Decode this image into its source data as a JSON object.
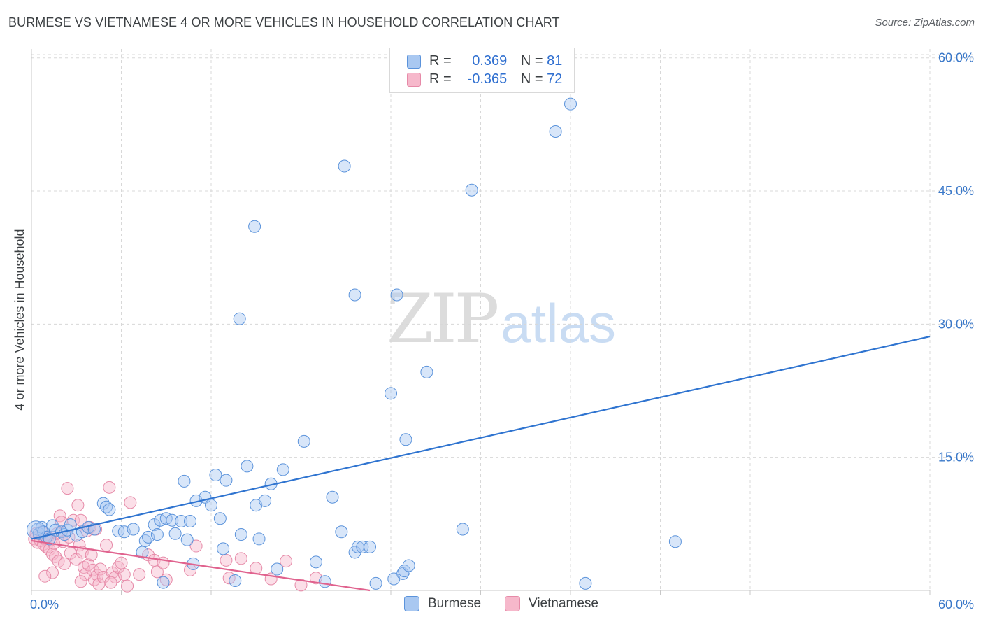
{
  "title": "BURMESE VS VIETNAMESE 4 OR MORE VEHICLES IN HOUSEHOLD CORRELATION CHART",
  "source": "Source: ZipAtlas.com",
  "watermark": {
    "zip": "ZIP",
    "atlas": "atlas"
  },
  "legend": {
    "rows": [
      {
        "r_label": "R =",
        "r_value": "0.369",
        "n_label": "N =",
        "n_value": "81"
      },
      {
        "r_label": "R =",
        "r_value": "-0.365",
        "n_label": "N =",
        "n_value": "72"
      }
    ]
  },
  "bottom_legend": {
    "series1": "Burmese",
    "series2": "Vietnamese"
  },
  "colors": {
    "blue_fill": "#a9c8f1",
    "blue_stroke": "#5b93db",
    "blue_line": "#2f74d0",
    "pink_fill": "#f6b8cb",
    "pink_stroke": "#e68aa8",
    "pink_line": "#e0628e",
    "grid": "#d8d8d8",
    "tick_text": "#3a78c9"
  },
  "chart_data": {
    "type": "scatter",
    "title": "BURMESE VS VIETNAMESE 4 OR MORE VEHICLES IN HOUSEHOLD CORRELATION CHART",
    "xlabel": "",
    "ylabel": "4 or more Vehicles in Household",
    "xlim": [
      0,
      60
    ],
    "ylim": [
      0,
      61
    ],
    "x_tick_labels": [
      "0.0%",
      "60.0%"
    ],
    "y_ticks": [
      15,
      30,
      45,
      60
    ],
    "y_tick_labels": [
      "15.0%",
      "30.0%",
      "45.0%",
      "60.0%"
    ],
    "series": [
      {
        "name": "Burmese",
        "r": 0.369,
        "n": 81,
        "trend": {
          "x": [
            0,
            60
          ],
          "y": [
            5.8,
            28.6
          ]
        },
        "points": [
          [
            0.4,
            6.9
          ],
          [
            0.5,
            6.4
          ],
          [
            0.7,
            7.1
          ],
          [
            0.8,
            6.6
          ],
          [
            1.0,
            6.0
          ],
          [
            1.2,
            5.8
          ],
          [
            1.4,
            7.3
          ],
          [
            1.6,
            6.8
          ],
          [
            2.0,
            6.6
          ],
          [
            2.2,
            6.3
          ],
          [
            2.4,
            6.8
          ],
          [
            2.6,
            7.4
          ],
          [
            3.0,
            6.2
          ],
          [
            3.4,
            6.6
          ],
          [
            3.8,
            7.1
          ],
          [
            4.2,
            6.9
          ],
          [
            4.8,
            9.8
          ],
          [
            5.0,
            9.4
          ],
          [
            5.2,
            9.1
          ],
          [
            5.8,
            6.7
          ],
          [
            6.2,
            6.6
          ],
          [
            6.8,
            6.9
          ],
          [
            7.4,
            4.3
          ],
          [
            7.6,
            5.6
          ],
          [
            7.8,
            6.0
          ],
          [
            8.2,
            7.4
          ],
          [
            8.4,
            6.3
          ],
          [
            8.6,
            7.9
          ],
          [
            9.0,
            8.1
          ],
          [
            9.4,
            7.9
          ],
          [
            9.6,
            6.4
          ],
          [
            10.0,
            7.8
          ],
          [
            10.4,
            5.7
          ],
          [
            10.6,
            7.8
          ],
          [
            10.8,
            3.0
          ],
          [
            10.2,
            12.3
          ],
          [
            11.0,
            10.1
          ],
          [
            11.6,
            10.5
          ],
          [
            12.0,
            9.6
          ],
          [
            12.3,
            13.0
          ],
          [
            12.6,
            8.1
          ],
          [
            12.8,
            4.7
          ],
          [
            13.0,
            12.4
          ],
          [
            13.6,
            1.1
          ],
          [
            14.0,
            6.3
          ],
          [
            14.4,
            14.0
          ],
          [
            15.0,
            9.6
          ],
          [
            15.2,
            5.8
          ],
          [
            15.6,
            10.1
          ],
          [
            16.0,
            12.0
          ],
          [
            16.4,
            2.4
          ],
          [
            16.8,
            13.6
          ],
          [
            18.2,
            16.8
          ],
          [
            19.0,
            3.2
          ],
          [
            19.6,
            1.0
          ],
          [
            20.1,
            10.5
          ],
          [
            20.7,
            6.6
          ],
          [
            21.6,
            4.3
          ],
          [
            21.8,
            4.9
          ],
          [
            22.1,
            4.9
          ],
          [
            22.6,
            4.9
          ],
          [
            23.0,
            0.8
          ],
          [
            24.0,
            22.2
          ],
          [
            24.2,
            1.3
          ],
          [
            24.8,
            1.9
          ],
          [
            24.9,
            2.2
          ],
          [
            25.0,
            17.0
          ],
          [
            26.4,
            24.6
          ],
          [
            28.8,
            6.9
          ],
          [
            29.4,
            45.1
          ],
          [
            35.0,
            51.7
          ],
          [
            36.0,
            54.8
          ],
          [
            37.0,
            0.8
          ],
          [
            43.0,
            5.5
          ],
          [
            13.9,
            30.6
          ],
          [
            14.9,
            41.0
          ],
          [
            20.9,
            47.8
          ],
          [
            21.6,
            33.3
          ],
          [
            24.4,
            33.3
          ],
          [
            25.2,
            2.8
          ],
          [
            8.8,
            0.9
          ]
        ]
      },
      {
        "name": "Vietnamese",
        "r": -0.365,
        "n": 72,
        "trend": {
          "x": [
            0,
            22.6
          ],
          "y": [
            5.6,
            0
          ]
        },
        "points": [
          [
            0.2,
            5.8
          ],
          [
            0.3,
            6.4
          ],
          [
            0.4,
            5.4
          ],
          [
            0.5,
            6.1
          ],
          [
            0.6,
            5.6
          ],
          [
            0.7,
            6.6
          ],
          [
            0.8,
            5.2
          ],
          [
            0.9,
            5.8
          ],
          [
            1.0,
            4.9
          ],
          [
            1.1,
            6.0
          ],
          [
            1.2,
            4.6
          ],
          [
            1.3,
            5.7
          ],
          [
            1.4,
            4.1
          ],
          [
            1.5,
            5.3
          ],
          [
            1.6,
            3.8
          ],
          [
            1.7,
            6.4
          ],
          [
            1.8,
            3.3
          ],
          [
            1.9,
            8.4
          ],
          [
            2.0,
            7.7
          ],
          [
            2.1,
            5.5
          ],
          [
            2.2,
            3.0
          ],
          [
            2.4,
            11.5
          ],
          [
            2.6,
            4.2
          ],
          [
            2.8,
            7.9
          ],
          [
            3.0,
            3.5
          ],
          [
            3.1,
            9.6
          ],
          [
            3.2,
            5.1
          ],
          [
            3.3,
            7.9
          ],
          [
            3.4,
            4.3
          ],
          [
            3.5,
            2.6
          ],
          [
            3.6,
            1.8
          ],
          [
            3.7,
            6.7
          ],
          [
            3.8,
            2.9
          ],
          [
            3.9,
            7.1
          ],
          [
            4.0,
            4.0
          ],
          [
            4.1,
            2.3
          ],
          [
            4.2,
            1.2
          ],
          [
            4.3,
            6.9
          ],
          [
            4.4,
            1.7
          ],
          [
            4.5,
            0.7
          ],
          [
            4.6,
            2.4
          ],
          [
            4.8,
            1.5
          ],
          [
            5.0,
            5.1
          ],
          [
            5.2,
            11.6
          ],
          [
            5.4,
            2.0
          ],
          [
            5.6,
            1.5
          ],
          [
            5.8,
            2.6
          ],
          [
            6.0,
            3.1
          ],
          [
            6.2,
            1.8
          ],
          [
            6.4,
            0.5
          ],
          [
            6.6,
            9.9
          ],
          [
            7.2,
            1.8
          ],
          [
            7.8,
            4.0
          ],
          [
            8.2,
            3.4
          ],
          [
            8.4,
            2.1
          ],
          [
            8.8,
            3.1
          ],
          [
            9.0,
            1.2
          ],
          [
            10.6,
            2.3
          ],
          [
            11.0,
            5.0
          ],
          [
            13.0,
            3.4
          ],
          [
            13.2,
            1.4
          ],
          [
            14.0,
            3.6
          ],
          [
            15.0,
            2.5
          ],
          [
            16.0,
            1.3
          ],
          [
            17.0,
            3.3
          ],
          [
            18.0,
            0.6
          ],
          [
            19.0,
            1.4
          ],
          [
            2.5,
            6.0
          ],
          [
            1.4,
            2.0
          ],
          [
            0.9,
            1.6
          ],
          [
            3.3,
            1.0
          ],
          [
            5.3,
            0.9
          ]
        ]
      }
    ]
  }
}
